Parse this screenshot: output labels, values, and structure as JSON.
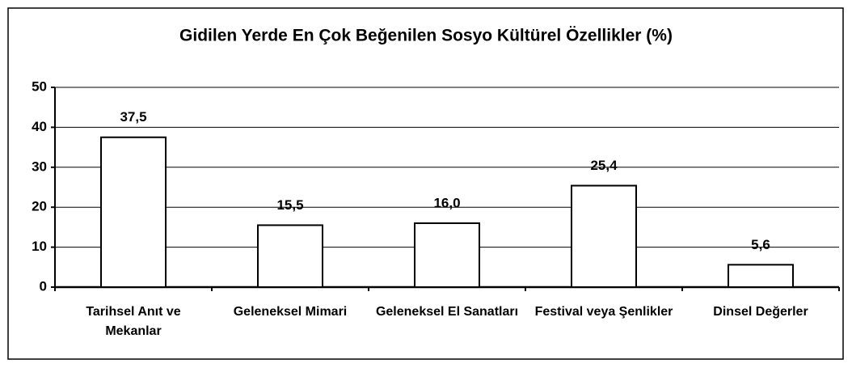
{
  "chart_data": {
    "type": "bar",
    "title": "Gidilen Yerde En Çok Beğenilen Sosyo Kültürel Özellikler (%)",
    "categories": [
      "Tarihsel Anıt ve Mekanlar",
      "Geleneksel Mimari",
      "Geleneksel El Sanatları",
      "Festival veya Şenlikler",
      "Dinsel Değerler"
    ],
    "values": [
      37.5,
      15.5,
      16.0,
      25.4,
      5.6
    ],
    "value_labels": [
      "37,5",
      "15,5",
      "16,0",
      "25,4",
      "5,6"
    ],
    "color": "#ffffff",
    "ylim": [
      0,
      50
    ],
    "yticks": [
      0,
      10,
      20,
      30,
      40,
      50
    ],
    "grid": true
  }
}
